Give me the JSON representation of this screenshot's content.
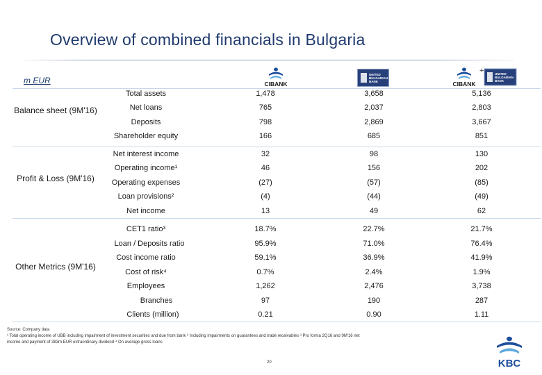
{
  "title": "Overview of combined financials in Bulgaria",
  "unit_label": "m EUR",
  "logos": {
    "cibank": "CIBANK",
    "ubb_line1": "UNITED",
    "ubb_line2": "BULGARIAN",
    "ubb_line3": "BANK",
    "plus": "+",
    "kbc": "KBC"
  },
  "sections": {
    "balance": "Balance sheet (9M'16)",
    "pl": "Profit & Loss (9M'16)",
    "other": "Other Metrics (9M'16)"
  },
  "rows": [
    {
      "label": "Total assets",
      "cib": "1,478",
      "ubb": "3,658",
      "combined": "5,136"
    },
    {
      "label": "Net loans",
      "cib": "765",
      "ubb": "2,037",
      "combined": "2,803"
    },
    {
      "label": "Deposits",
      "cib": "798",
      "ubb": "2,869",
      "combined": "3,667"
    },
    {
      "label": "Shareholder equity",
      "cib": "166",
      "ubb": "685",
      "combined": "851"
    },
    {
      "label": "Net interest income",
      "cib": "32",
      "ubb": "98",
      "combined": "130"
    },
    {
      "label": "Operating income¹",
      "cib": "46",
      "ubb": "156",
      "combined": "202"
    },
    {
      "label": "Operating expenses",
      "cib": "(27)",
      "ubb": "(57)",
      "combined": "(85)"
    },
    {
      "label": "Loan provisions²",
      "cib": "(4)",
      "ubb": "(44)",
      "combined": "(49)"
    },
    {
      "label": "Net income",
      "cib": "13",
      "ubb": "49",
      "combined": "62"
    },
    {
      "label": "CET1 ratio³",
      "cib": "18.7%",
      "ubb": "22.7%",
      "combined": "21.7%"
    },
    {
      "label": "Loan / Deposits ratio",
      "cib": "95.9%",
      "ubb": "71.0%",
      "combined": "76.4%"
    },
    {
      "label": "Cost income ratio",
      "cib": "59.1%",
      "ubb": "36.9%",
      "combined": "41.9%"
    },
    {
      "label": "Cost of risk⁴",
      "cib": "0.7%",
      "ubb": "2.4%",
      "combined": "1.9%"
    },
    {
      "label": "Employees",
      "cib": "1,262",
      "ubb": "2,476",
      "combined": "3,738"
    },
    {
      "label": "Branches",
      "cib": "97",
      "ubb": "190",
      "combined": "287"
    },
    {
      "label": "Clients (million)",
      "cib": "0.21",
      "ubb": "0.90",
      "combined": "1.11"
    }
  ],
  "footnote_line1": "Source: Company data",
  "footnote_line2": "¹ Total operating income of UBB including impairment of investment securities and due from bank ² Including impairments on guarantees and trade receivables ³ Pro forma 2Q16 and 9M'16 net",
  "footnote_line3": "income and payment of 383m EUR extraordinary dividend ⁴ On average gross loans",
  "page_number": "20",
  "colors": {
    "title": "#1f3a6e",
    "divider": "#c9d9ea",
    "kbc_blue": "#1e4f9c",
    "kbc_light": "#5ea9dd"
  }
}
